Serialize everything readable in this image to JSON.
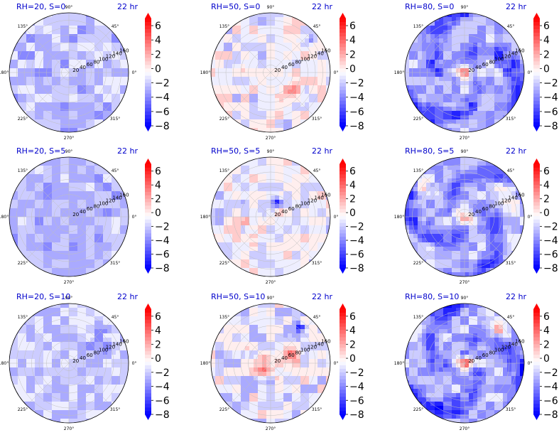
{
  "chart_data": [
    {
      "type": "heatmap",
      "projection": "polar",
      "panel": "RH=20, S=0",
      "title_left": "RH=20, S=0",
      "title_right": "22 hr",
      "angle_ticks": [
        "90°",
        "45°",
        "0°",
        "315°",
        "270°",
        "225°",
        "180°",
        "135°"
      ],
      "radial_ticks": [
        "20",
        "40",
        "60",
        "80",
        "100",
        "120",
        "140",
        "160"
      ],
      "rlim": [
        0,
        160
      ],
      "colorbar": {
        "ticks": [
          "6",
          "4",
          "2",
          "0",
          "−2",
          "−4",
          "−6",
          "−8"
        ],
        "range": [
          -8,
          7
        ],
        "cmap": "bwr",
        "extend": "both"
      },
      "field": {
        "mean": -2.3,
        "amp": 1.4,
        "spiral": 0,
        "core": 0,
        "blobs": []
      }
    },
    {
      "type": "heatmap",
      "projection": "polar",
      "panel": "RH=50, S=0",
      "title_left": "RH=50, S=0",
      "title_right": "22 hr",
      "angle_ticks": [
        "90°",
        "45°",
        "0°",
        "315°",
        "270°",
        "225°",
        "180°",
        "135°"
      ],
      "radial_ticks": [
        "20",
        "40",
        "60",
        "80",
        "100",
        "120",
        "140",
        "160"
      ],
      "rlim": [
        0,
        160
      ],
      "colorbar": {
        "ticks": [
          "6",
          "4",
          "2",
          "0",
          "−2",
          "−4",
          "−6",
          "−8"
        ],
        "range": [
          -8,
          7
        ],
        "cmap": "bwr",
        "extend": "both"
      },
      "field": {
        "mean": -0.8,
        "amp": 1.8,
        "spiral": 0,
        "core": 0,
        "blobs": [
          [
            0.35,
            -0.3,
            0.18,
            2.8
          ],
          [
            -0.55,
            0.05,
            0.12,
            1.8
          ],
          [
            0.6,
            0.55,
            0.1,
            -3
          ]
        ]
      }
    },
    {
      "type": "heatmap",
      "projection": "polar",
      "panel": "RH=80, S=0",
      "title_left": "RH=80, S=0",
      "title_right": "22 hr",
      "angle_ticks": [
        "90°",
        "45°",
        "0°",
        "315°",
        "270°",
        "225°",
        "180°",
        "135°"
      ],
      "radial_ticks": [
        "20",
        "40",
        "60",
        "80",
        "100",
        "120",
        "140",
        "160"
      ],
      "rlim": [
        0,
        160
      ],
      "colorbar": {
        "ticks": [
          "6",
          "4",
          "2",
          "0",
          "−2",
          "−4",
          "−6",
          "−8"
        ],
        "range": [
          -8,
          7
        ],
        "cmap": "bwr",
        "extend": "both"
      },
      "field": {
        "mean": -2.8,
        "amp": 1.6,
        "spiral": 2.6,
        "core": 6,
        "blobs": []
      }
    },
    {
      "type": "heatmap",
      "projection": "polar",
      "panel": "RH=20, S=5",
      "title_left": "RH=20, S=5",
      "title_right": "22 hr",
      "angle_ticks": [
        "90°",
        "45°",
        "0°",
        "315°",
        "270°",
        "225°",
        "180°",
        "135°"
      ],
      "radial_ticks": [
        "20",
        "40",
        "60",
        "80",
        "100",
        "120",
        "140",
        "160"
      ],
      "rlim": [
        0,
        160
      ],
      "colorbar": {
        "ticks": [
          "6",
          "4",
          "2",
          "0",
          "−2",
          "−4",
          "−6",
          "−8"
        ],
        "range": [
          -8,
          7
        ],
        "cmap": "bwr",
        "extend": "both"
      },
      "field": {
        "mean": -2.5,
        "amp": 1.2,
        "spiral": 0,
        "core": 0,
        "blobs": []
      }
    },
    {
      "type": "heatmap",
      "projection": "polar",
      "panel": "RH=50, S=5",
      "title_left": "RH=50, S=5",
      "title_right": "22 hr",
      "angle_ticks": [
        "90°",
        "45°",
        "0°",
        "315°",
        "270°",
        "225°",
        "180°",
        "135°"
      ],
      "radial_ticks": [
        "20",
        "40",
        "60",
        "80",
        "100",
        "120",
        "140",
        "160"
      ],
      "rlim": [
        0,
        160
      ],
      "colorbar": {
        "ticks": [
          "6",
          "4",
          "2",
          "0",
          "−2",
          "−4",
          "−6",
          "−8"
        ],
        "range": [
          -8,
          7
        ],
        "cmap": "bwr",
        "extend": "both"
      },
      "field": {
        "mean": -0.9,
        "amp": 1.8,
        "spiral": 0,
        "core": 0,
        "blobs": [
          [
            -0.3,
            -0.15,
            0.2,
            1.6
          ],
          [
            0.1,
            0.25,
            0.08,
            -5
          ]
        ]
      }
    },
    {
      "type": "heatmap",
      "projection": "polar",
      "panel": "RH=80, S=5",
      "title_left": "RH=80, S=5",
      "title_right": "22 hr",
      "angle_ticks": [
        "90°",
        "45°",
        "0°",
        "315°",
        "270°",
        "225°",
        "180°",
        "135°"
      ],
      "radial_ticks": [
        "20",
        "40",
        "60",
        "80",
        "100",
        "120",
        "140",
        "160"
      ],
      "rlim": [
        0,
        160
      ],
      "colorbar": {
        "ticks": [
          "6",
          "4",
          "2",
          "0",
          "−2",
          "−4",
          "−6",
          "−8"
        ],
        "range": [
          -8,
          7
        ],
        "cmap": "bwr",
        "extend": "both"
      },
      "field": {
        "mean": -2.6,
        "amp": 1.6,
        "spiral": 2.4,
        "core": 6,
        "blobs": [
          [
            0.7,
            0.35,
            0.2,
            3.5
          ],
          [
            -0.65,
            0.45,
            0.18,
            2.2
          ]
        ]
      }
    },
    {
      "type": "heatmap",
      "projection": "polar",
      "panel": "RH=20, S=10",
      "title_left": "RH=20, S=10",
      "title_right": "22 hr",
      "angle_ticks": [
        "90°",
        "45°",
        "0°",
        "315°",
        "270°",
        "225°",
        "180°",
        "135°"
      ],
      "radial_ticks": [
        "20",
        "40",
        "60",
        "80",
        "100",
        "120",
        "140",
        "160"
      ],
      "rlim": [
        0,
        160
      ],
      "colorbar": {
        "ticks": [
          "6",
          "4",
          "2",
          "0",
          "−2",
          "−4",
          "−6",
          "−8"
        ],
        "range": [
          -8,
          7
        ],
        "cmap": "bwr",
        "extend": "both"
      },
      "field": {
        "mean": -2.0,
        "amp": 1.3,
        "spiral": 0,
        "core": 0,
        "blobs": [
          [
            0.55,
            0.3,
            0.2,
            -1.5
          ]
        ]
      }
    },
    {
      "type": "heatmap",
      "projection": "polar",
      "panel": "RH=50, S=10",
      "title_left": "RH=50, S=10",
      "title_right": "22 hr",
      "angle_ticks": [
        "90°",
        "45°",
        "0°",
        "315°",
        "270°",
        "225°",
        "180°",
        "135°"
      ],
      "radial_ticks": [
        "20",
        "40",
        "60",
        "80",
        "100",
        "120",
        "140",
        "160"
      ],
      "rlim": [
        0,
        160
      ],
      "colorbar": {
        "ticks": [
          "6",
          "4",
          "2",
          "0",
          "−2",
          "−4",
          "−6",
          "−8"
        ],
        "range": [
          -8,
          7
        ],
        "cmap": "bwr",
        "extend": "both"
      },
      "field": {
        "mean": -1.0,
        "amp": 1.9,
        "spiral": 0,
        "core": 0,
        "blobs": [
          [
            -0.1,
            0.0,
            0.18,
            4.5
          ],
          [
            0.35,
            0.15,
            0.14,
            3.5
          ],
          [
            0.5,
            0.6,
            0.08,
            -6
          ]
        ]
      }
    },
    {
      "type": "heatmap",
      "projection": "polar",
      "panel": "RH=80, S=10",
      "title_left": "RH=80, S=10",
      "title_right": "22 hr",
      "angle_ticks": [
        "90°",
        "45°",
        "0°",
        "315°",
        "270°",
        "225°",
        "180°",
        "135°"
      ],
      "radial_ticks": [
        "20",
        "40",
        "60",
        "80",
        "100",
        "120",
        "140",
        "160"
      ],
      "rlim": [
        0,
        160
      ],
      "colorbar": {
        "ticks": [
          "6",
          "4",
          "2",
          "0",
          "−2",
          "−4",
          "−6",
          "−8"
        ],
        "range": [
          -8,
          7
        ],
        "cmap": "bwr",
        "extend": "both"
      },
      "field": {
        "mean": -2.8,
        "amp": 1.7,
        "spiral": 2.8,
        "core": 6.5,
        "blobs": [
          [
            0.55,
            0.55,
            0.2,
            3.2
          ],
          [
            -0.5,
            0.55,
            0.15,
            1.5
          ]
        ]
      }
    }
  ],
  "colors": {
    "title_left": "#0000cc",
    "title_right": "#0000cc",
    "grid": "#bfbfbf",
    "cmap_low": "#0000ff",
    "cmap_mid": "#ffffff",
    "cmap_high": "#ff0000"
  }
}
